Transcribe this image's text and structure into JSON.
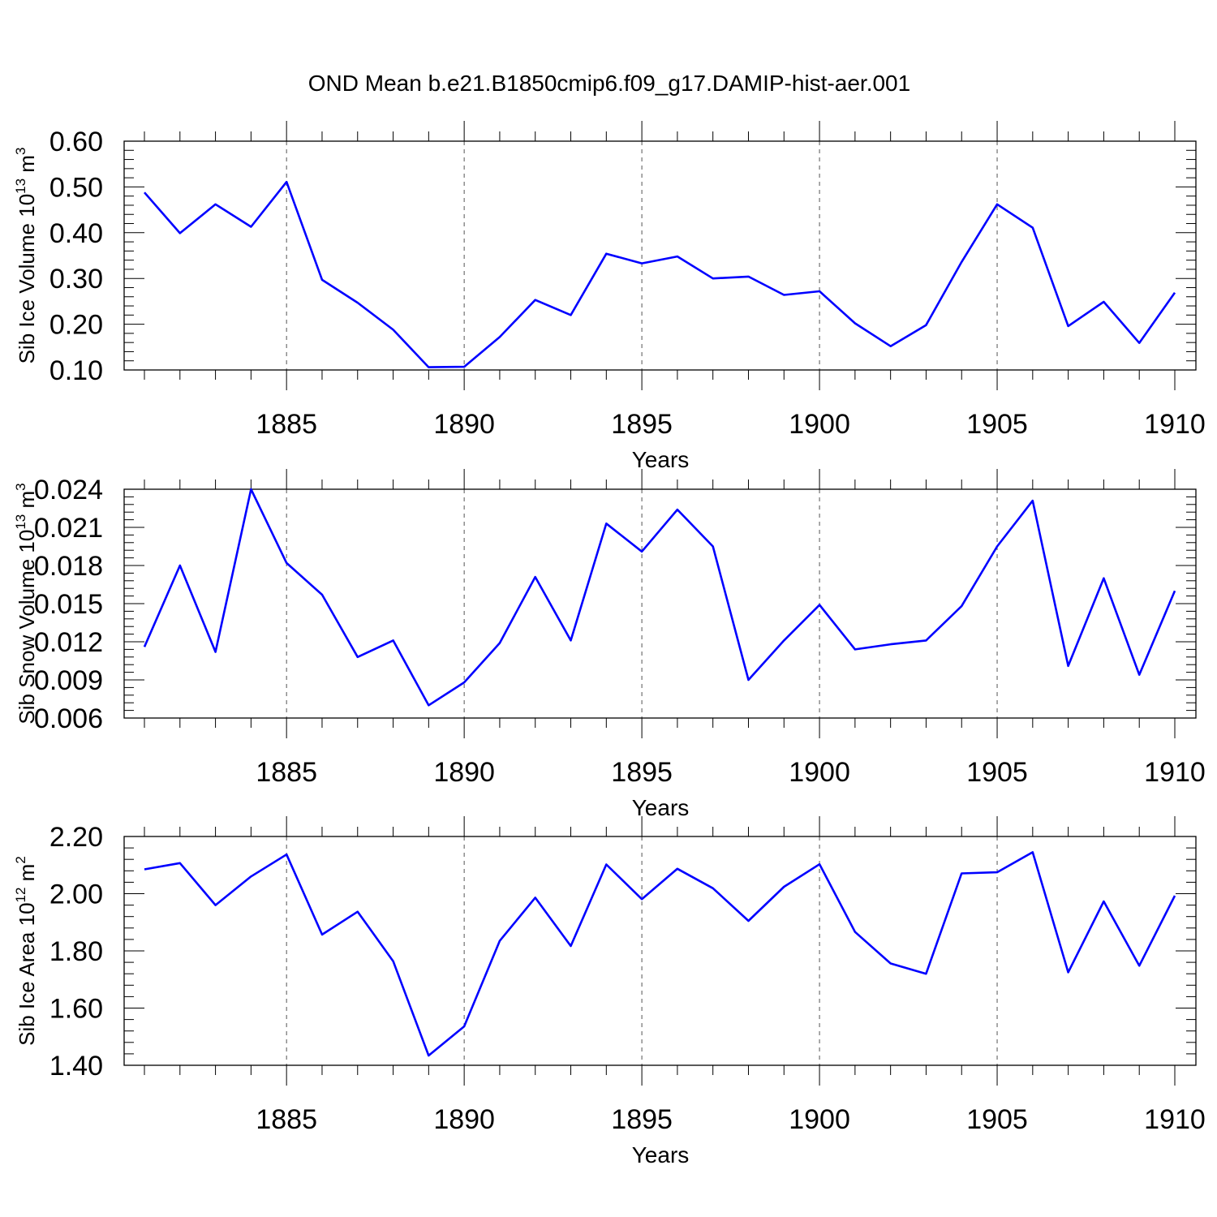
{
  "title": "OND Mean b.e21.B1850cmip6.f09_g17.DAMIP-hist-aer.001",
  "colors": {
    "line": "#0000ff",
    "axis": "#000000",
    "grid": "#555555"
  },
  "chart_data": [
    {
      "type": "line",
      "id": "ice-volume",
      "ylabel_main": "Sib Ice Volume 10",
      "ylabel_exp": "13",
      "ylabel_unit": "m",
      "ylabel_unit_exp": "3",
      "xlabel": "Years",
      "xlim": [
        1881,
        1910
      ],
      "ylim": [
        0.1,
        0.6
      ],
      "yticks": [
        0.1,
        0.2,
        0.3,
        0.4,
        0.5,
        0.6
      ],
      "ytick_labels": [
        "0.10",
        "0.20",
        "0.30",
        "0.40",
        "0.50",
        "0.60"
      ],
      "xticks": [
        1885,
        1890,
        1895,
        1900,
        1905,
        1910
      ],
      "xtick_labels": [
        "1885",
        "1890",
        "1895",
        "1900",
        "1905",
        "1910"
      ],
      "grid": "vertical dashed at major x ticks",
      "x": [
        1881,
        1882,
        1883,
        1884,
        1885,
        1886,
        1887,
        1888,
        1889,
        1890,
        1891,
        1892,
        1893,
        1894,
        1895,
        1896,
        1897,
        1898,
        1899,
        1900,
        1901,
        1902,
        1903,
        1904,
        1905,
        1906,
        1907,
        1908,
        1909,
        1910
      ],
      "y": [
        0.488,
        0.399,
        0.462,
        0.413,
        0.511,
        0.297,
        0.247,
        0.188,
        0.106,
        0.107,
        0.172,
        0.253,
        0.22,
        0.354,
        0.333,
        0.348,
        0.3,
        0.304,
        0.264,
        0.272,
        0.202,
        0.152,
        0.198,
        0.336,
        0.462,
        0.411,
        0.196,
        0.249,
        0.159,
        0.269
      ]
    },
    {
      "type": "line",
      "id": "snow-volume",
      "ylabel_main": "Sib Snow Volume 10",
      "ylabel_exp": "13",
      "ylabel_unit": "m",
      "ylabel_unit_exp": "3",
      "xlabel": "Years",
      "xlim": [
        1881,
        1910
      ],
      "ylim": [
        0.006,
        0.024
      ],
      "yticks": [
        0.006,
        0.009,
        0.012,
        0.015,
        0.018,
        0.021,
        0.024
      ],
      "ytick_labels": [
        "0.006",
        "0.009",
        "0.012",
        "0.015",
        "0.018",
        "0.021",
        "0.024"
      ],
      "xticks": [
        1885,
        1890,
        1895,
        1900,
        1905,
        1910
      ],
      "xtick_labels": [
        "1885",
        "1890",
        "1895",
        "1900",
        "1905",
        "1910"
      ],
      "grid": "vertical dashed at major x ticks",
      "x": [
        1881,
        1882,
        1883,
        1884,
        1885,
        1886,
        1887,
        1888,
        1889,
        1890,
        1891,
        1892,
        1893,
        1894,
        1895,
        1896,
        1897,
        1898,
        1899,
        1900,
        1901,
        1902,
        1903,
        1904,
        1905,
        1906,
        1907,
        1908,
        1909,
        1910
      ],
      "y": [
        0.0116,
        0.018,
        0.0112,
        0.024,
        0.0182,
        0.0157,
        0.0108,
        0.0121,
        0.007,
        0.0088,
        0.0119,
        0.0171,
        0.0121,
        0.0213,
        0.0191,
        0.0224,
        0.0195,
        0.009,
        0.0121,
        0.0149,
        0.0114,
        0.0118,
        0.0121,
        0.0148,
        0.0195,
        0.0231,
        0.0101,
        0.017,
        0.0094,
        0.016
      ]
    },
    {
      "type": "line",
      "id": "ice-area",
      "ylabel_main": "Sib Ice Area 10",
      "ylabel_exp": "12",
      "ylabel_unit": "m",
      "ylabel_unit_exp": "2",
      "xlabel": "Years",
      "xlim": [
        1881,
        1910
      ],
      "ylim": [
        1.4,
        2.2
      ],
      "yticks": [
        1.4,
        1.6,
        1.8,
        2.0,
        2.2
      ],
      "ytick_labels": [
        "1.40",
        "1.60",
        "1.80",
        "2.00",
        "2.20"
      ],
      "xticks": [
        1885,
        1890,
        1895,
        1900,
        1905,
        1910
      ],
      "xtick_labels": [
        "1885",
        "1890",
        "1895",
        "1900",
        "1905",
        "1910"
      ],
      "grid": "vertical dashed at major x ticks",
      "x": [
        1881,
        1882,
        1883,
        1884,
        1885,
        1886,
        1887,
        1888,
        1889,
        1890,
        1891,
        1892,
        1893,
        1894,
        1895,
        1896,
        1897,
        1898,
        1899,
        1900,
        1901,
        1902,
        1903,
        1904,
        1905,
        1906,
        1907,
        1908,
        1909,
        1910
      ],
      "y": [
        2.085,
        2.107,
        1.96,
        2.06,
        2.137,
        1.857,
        1.937,
        1.764,
        1.434,
        1.536,
        1.835,
        1.986,
        1.817,
        2.102,
        1.981,
        2.087,
        2.019,
        1.905,
        2.024,
        2.103,
        1.866,
        1.756,
        1.72,
        2.071,
        2.075,
        2.145,
        1.725,
        1.973,
        1.748,
        1.993
      ]
    }
  ]
}
